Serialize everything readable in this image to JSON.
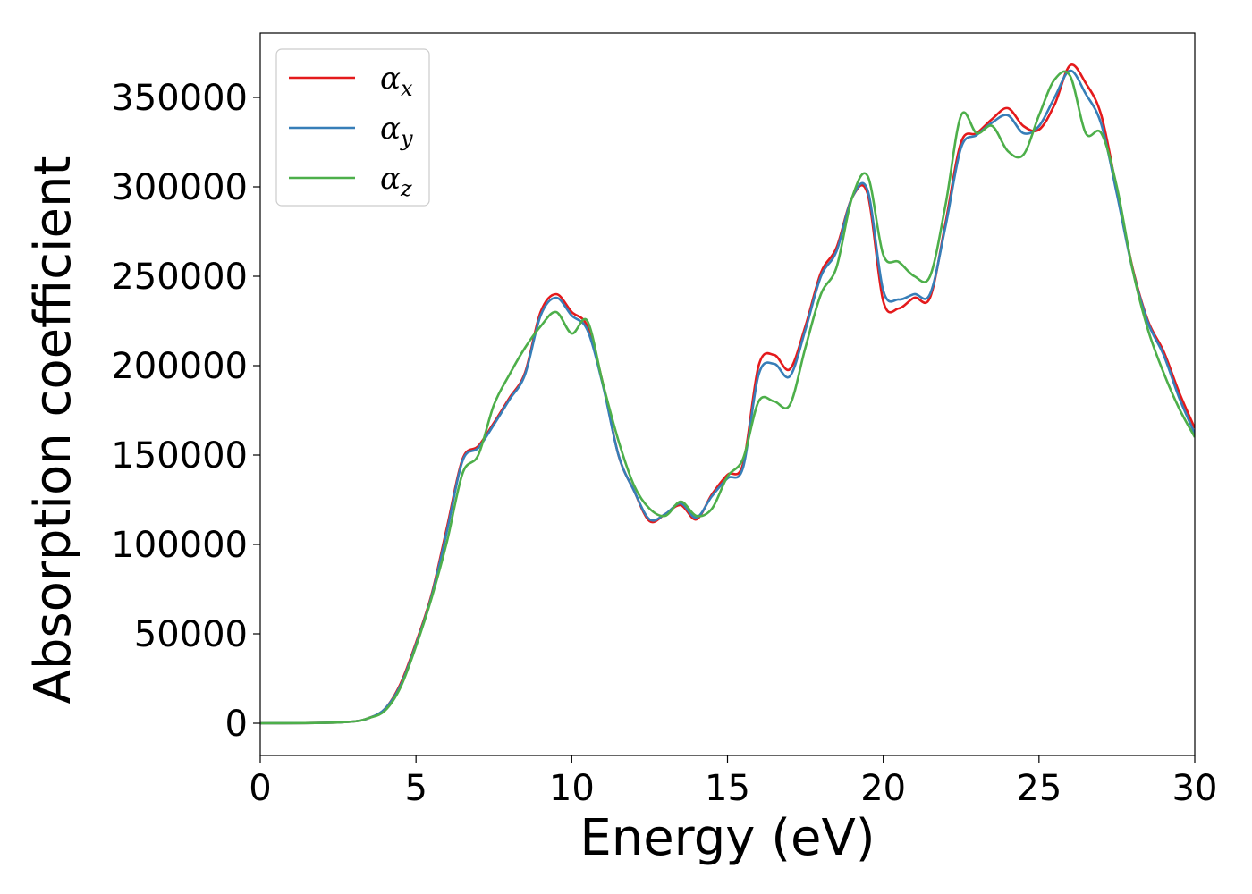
{
  "chart_data": {
    "type": "line",
    "title": "",
    "xlabel": "Energy (eV)",
    "ylabel": "Absorption coefficient",
    "xlim": [
      0,
      30
    ],
    "ylim": [
      -18000,
      386000
    ],
    "xticks": [
      0,
      5,
      10,
      15,
      20,
      25,
      30
    ],
    "yticks": [
      0,
      50000,
      100000,
      150000,
      200000,
      250000,
      300000,
      350000
    ],
    "grid": false,
    "legend": "top-left",
    "series": [
      {
        "name": "α",
        "subscript": "x",
        "color": "#e41a1c",
        "x": [
          0,
          2,
          3,
          3.5,
          4,
          4.5,
          5,
          5.5,
          6,
          6.5,
          7,
          7.5,
          8,
          8.5,
          9,
          9.5,
          10,
          10.5,
          11,
          11.5,
          12,
          12.5,
          13,
          13.5,
          14,
          14.5,
          15,
          15.5,
          16,
          16.5,
          17,
          17.5,
          18,
          18.5,
          19,
          19.5,
          20,
          20.5,
          21,
          21.5,
          22,
          22.5,
          23,
          23.5,
          24,
          24.5,
          25,
          25.5,
          26,
          26.5,
          27,
          27.5,
          28,
          28.5,
          29,
          29.5,
          30
        ],
        "values": [
          0,
          200,
          1000,
          3000,
          8000,
          22000,
          45000,
          72000,
          110000,
          148000,
          155000,
          168000,
          182000,
          196000,
          230000,
          240000,
          230000,
          222000,
          190000,
          150000,
          130000,
          113000,
          117000,
          122000,
          114000,
          128000,
          139000,
          145000,
          200000,
          206000,
          198000,
          222000,
          252000,
          266000,
          294000,
          296000,
          236000,
          232000,
          238000,
          238000,
          280000,
          325000,
          330000,
          338000,
          344000,
          334000,
          332000,
          346000,
          368000,
          358000,
          340000,
          298000,
          255000,
          225000,
          208000,
          185000,
          165000
        ]
      },
      {
        "name": "α",
        "subscript": "y",
        "color": "#377eb8",
        "x": [
          0,
          2,
          3,
          3.5,
          4,
          4.5,
          5,
          5.5,
          6,
          6.5,
          7,
          7.5,
          8,
          8.5,
          9,
          9.5,
          10,
          10.5,
          11,
          11.5,
          12,
          12.5,
          13,
          13.5,
          14,
          14.5,
          15,
          15.5,
          16,
          16.5,
          17,
          17.5,
          18,
          18.5,
          19,
          19.5,
          20,
          20.5,
          21,
          21.5,
          22,
          22.5,
          23,
          23.5,
          24,
          24.5,
          25,
          25.5,
          26,
          26.5,
          27,
          27.5,
          28,
          28.5,
          29,
          29.5,
          30
        ],
        "values": [
          0,
          200,
          1000,
          3000,
          8000,
          21000,
          44000,
          71000,
          108000,
          147000,
          154000,
          167000,
          181000,
          195000,
          228000,
          238000,
          228000,
          220000,
          189000,
          150000,
          130000,
          114000,
          117000,
          123000,
          115000,
          127000,
          137000,
          143000,
          195000,
          201000,
          194000,
          220000,
          250000,
          264000,
          294000,
          298000,
          242000,
          237000,
          240000,
          240000,
          278000,
          322000,
          329000,
          336000,
          340000,
          330000,
          334000,
          350000,
          365000,
          352000,
          335000,
          296000,
          254000,
          224000,
          206000,
          182000,
          162000
        ]
      },
      {
        "name": "α",
        "subscript": "z",
        "color": "#4daf4a",
        "x": [
          0,
          2,
          3,
          3.5,
          4,
          4.5,
          5,
          5.5,
          6,
          6.5,
          7,
          7.5,
          8,
          8.5,
          9,
          9.5,
          10,
          10.5,
          11,
          11.5,
          12,
          12.5,
          13,
          13.5,
          14,
          14.5,
          15,
          15.5,
          16,
          16.5,
          17,
          17.5,
          18,
          18.5,
          19,
          19.5,
          20,
          20.5,
          21,
          21.5,
          22,
          22.5,
          23,
          23.5,
          24,
          24.5,
          25,
          25.5,
          26,
          26.5,
          27,
          27.5,
          28,
          28.5,
          29,
          29.5,
          30
        ],
        "values": [
          0,
          200,
          1000,
          3000,
          7000,
          20000,
          43000,
          70000,
          102000,
          140000,
          150000,
          178000,
          195000,
          210000,
          222000,
          230000,
          218000,
          225000,
          190000,
          158000,
          133000,
          120000,
          116000,
          124000,
          116000,
          120000,
          138000,
          148000,
          180000,
          180000,
          178000,
          210000,
          240000,
          255000,
          294000,
          306000,
          262000,
          258000,
          250000,
          250000,
          290000,
          340000,
          330000,
          334000,
          320000,
          318000,
          340000,
          360000,
          362000,
          330000,
          330000,
          300000,
          254000,
          220000,
          196000,
          176000,
          160000
        ]
      }
    ]
  }
}
